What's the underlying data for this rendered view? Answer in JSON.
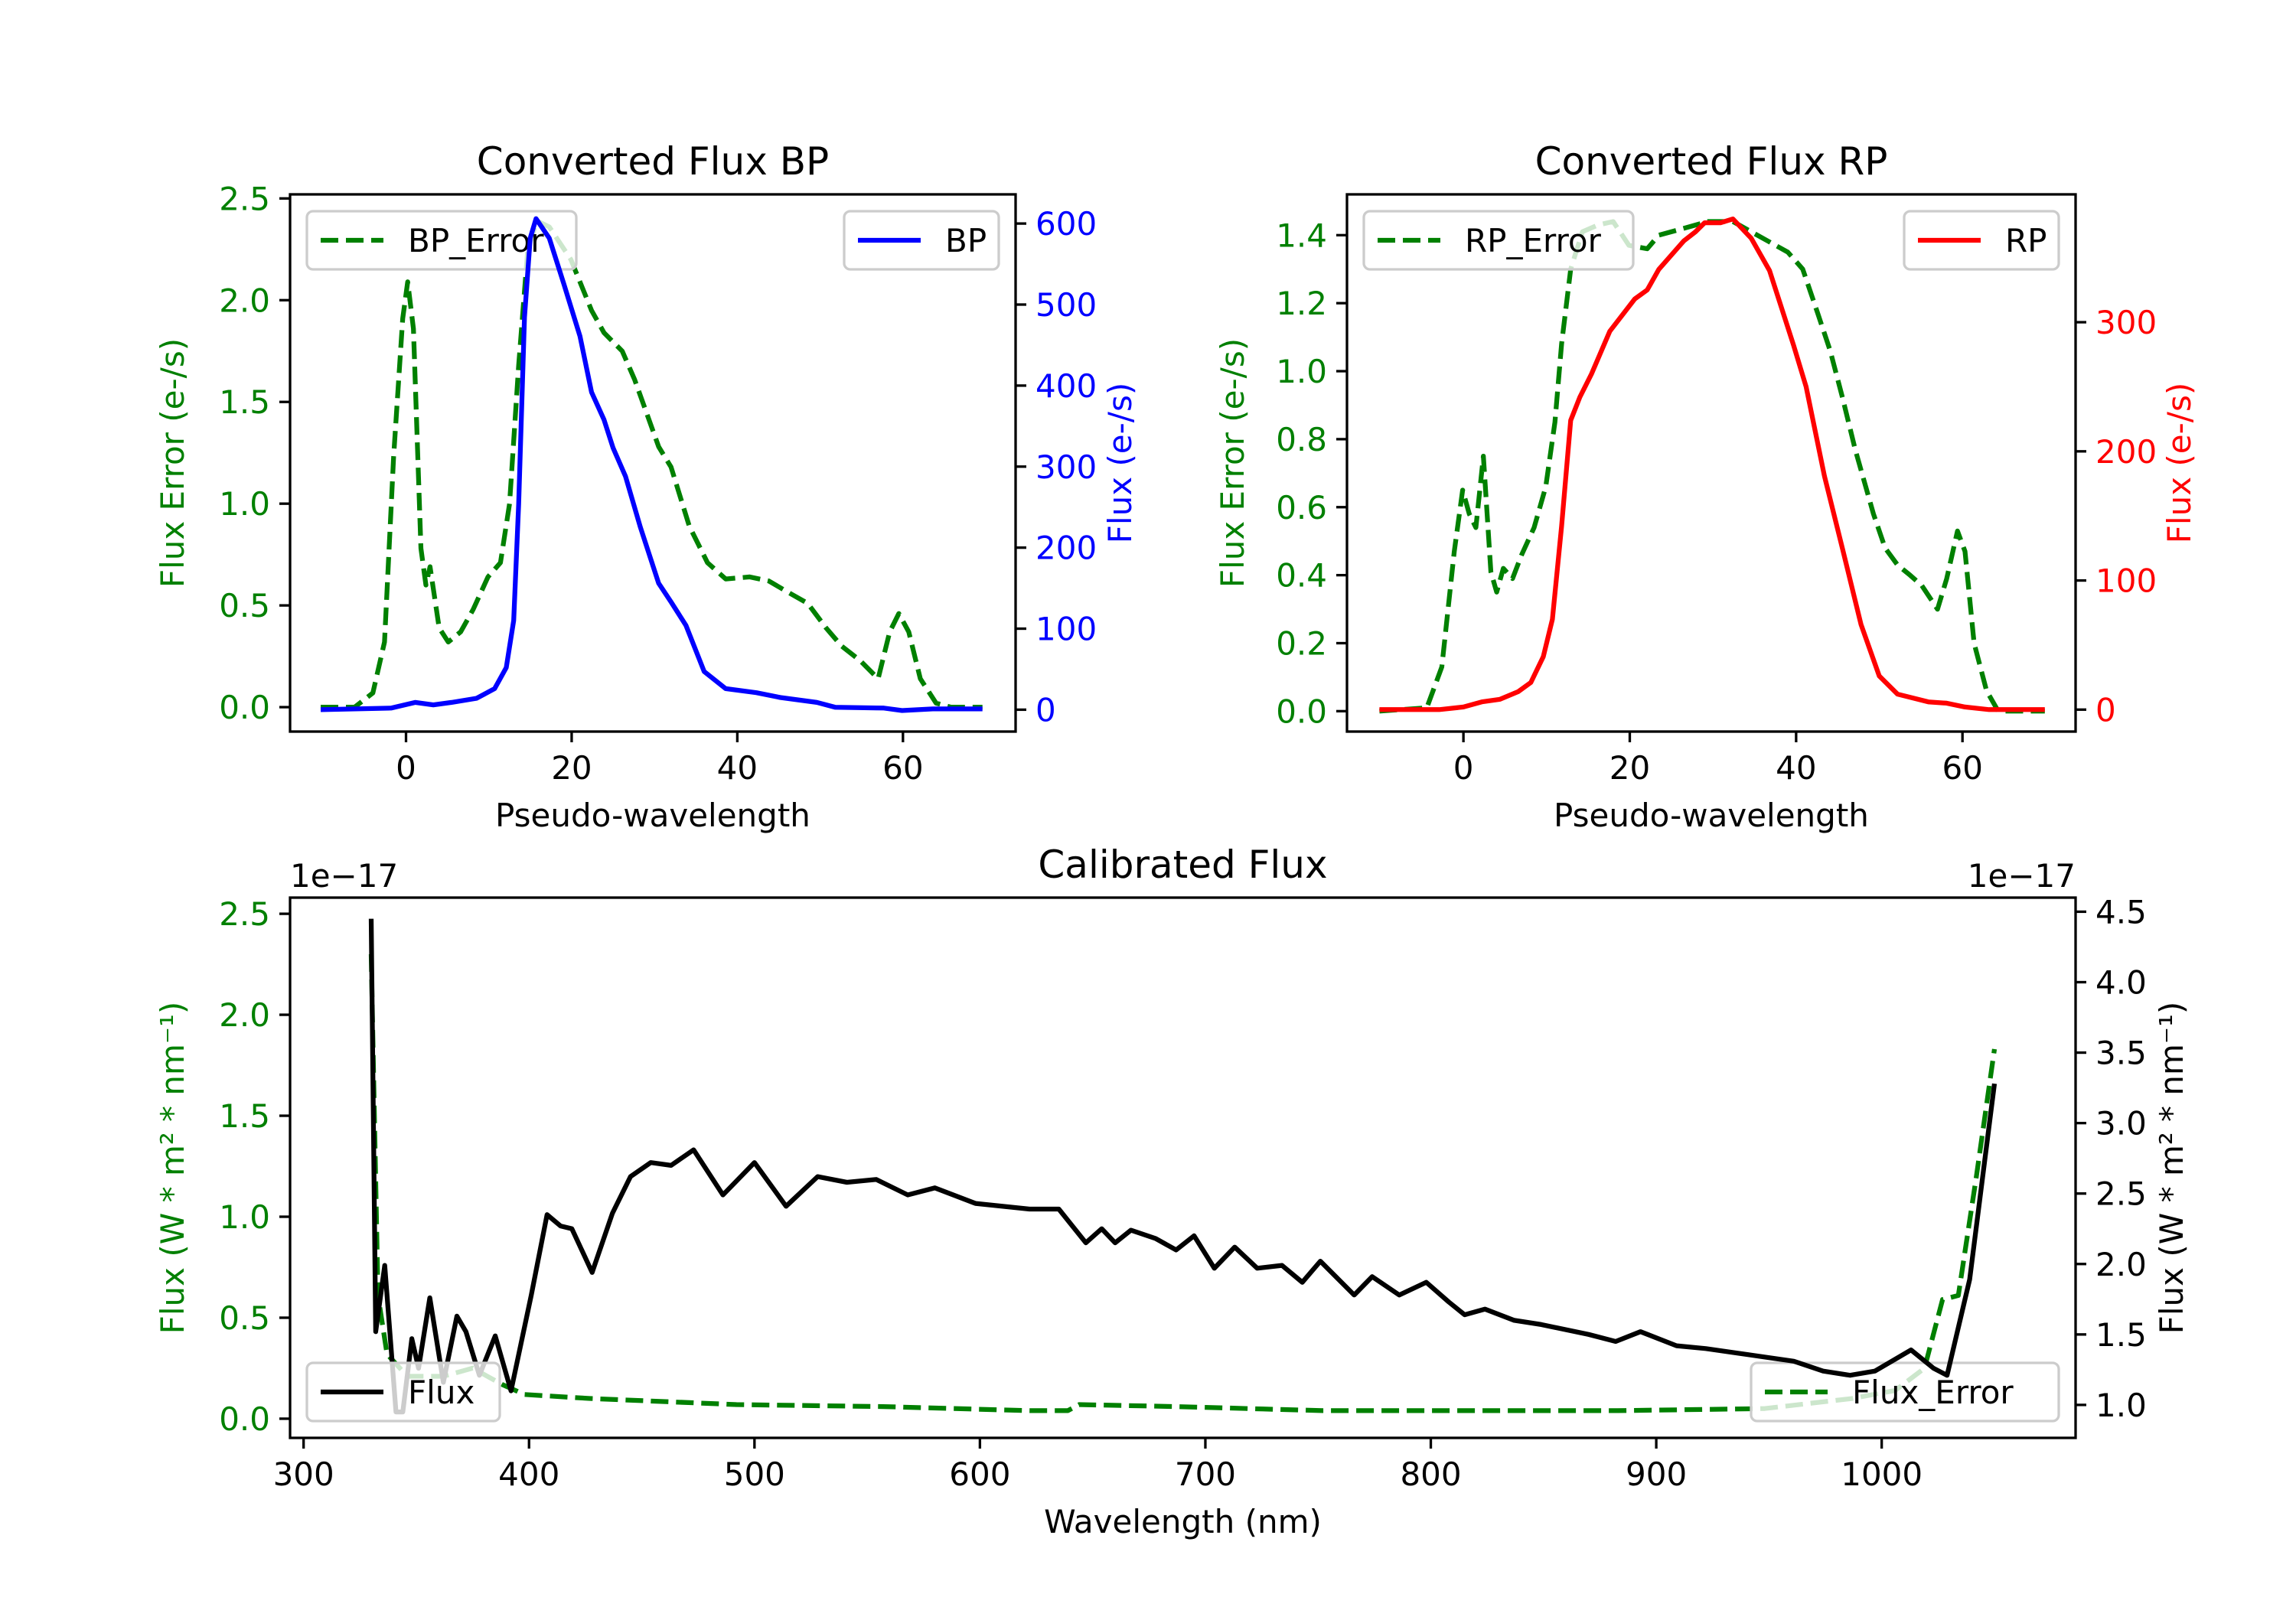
{
  "chart_data": [
    {
      "type": "line",
      "title": "Converted Flux BP",
      "xlabel": "Pseudo-wavelength",
      "ylabel_left": "Flux Error (e-/s)",
      "ylabel_right": "Flux (e-/s)",
      "color_left": "#008000",
      "color_right": "#0000ff",
      "xlim": [
        -14,
        73.6
      ],
      "ylim_left": [
        -0.12,
        2.52
      ],
      "ylim_right": [
        -27,
        636
      ],
      "xticks": [
        "0",
        "20",
        "40",
        "60"
      ],
      "yticks_left": [
        "0.0",
        "0.5",
        "1.0",
        "1.5",
        "2.0",
        "2.5"
      ],
      "yticks_right": [
        "0",
        "100",
        "200",
        "300",
        "400",
        "500",
        "600"
      ],
      "grid": false,
      "series": [
        {
          "name": "BP_Error",
          "axis": "left",
          "color": "#008000",
          "style": "dashed",
          "legend": "upper-left",
          "x": [
            -10.3,
            -6.2,
            -4,
            -2.6,
            -1.5,
            -0.4,
            0.2,
            0.9,
            1.8,
            2.4,
            2.9,
            4.0,
            5.1,
            6.6,
            8.1,
            9.9,
            11.4,
            12.5,
            13.6,
            14.7,
            15.8,
            17.3,
            19.9,
            22.4,
            23.9,
            26.1,
            27.6,
            30.5,
            32,
            34.2,
            36.4,
            38.6,
            41.5,
            43.8,
            45.9,
            48.5,
            50.7,
            52.6,
            54.8,
            57,
            58.4,
            59.5,
            60.7,
            62.1,
            64,
            65.8,
            69.6
          ],
          "y": [
            0,
            0,
            0.07,
            0.32,
            1.23,
            1.91,
            2.09,
            1.86,
            0.78,
            0.6,
            0.69,
            0.39,
            0.32,
            0.37,
            0.48,
            0.64,
            0.71,
            1.0,
            1.68,
            2.25,
            2.39,
            2.36,
            2.2,
            1.95,
            1.84,
            1.75,
            1.61,
            1.28,
            1.18,
            0.89,
            0.71,
            0.63,
            0.64,
            0.62,
            0.57,
            0.51,
            0.39,
            0.3,
            0.23,
            0.14,
            0.37,
            0.46,
            0.37,
            0.14,
            0.02,
            0,
            0
          ]
        },
        {
          "name": "BP",
          "axis": "right",
          "color": "#0000ff",
          "style": "solid",
          "legend": "upper-right",
          "x": [
            -10.3,
            -1.8,
            1.1,
            3.3,
            5.5,
            8.5,
            10.7,
            12.1,
            13,
            13.6,
            14.3,
            15,
            15.7,
            17.3,
            19.1,
            21,
            22.4,
            23.9,
            25,
            26.5,
            28.3,
            30.5,
            32,
            33.8,
            36,
            38.6,
            42.3,
            45.2,
            49.6,
            51.8,
            57.7,
            59.9,
            63.6,
            69.6
          ],
          "y": [
            0,
            2,
            9,
            6,
            9,
            14,
            26,
            52,
            110,
            254,
            484,
            582,
            606,
            582,
            524,
            461,
            392,
            358,
            323,
            288,
            225,
            156,
            133,
            104,
            47,
            26,
            21,
            15,
            9,
            3,
            2,
            -1,
            1,
            1
          ]
        }
      ]
    },
    {
      "type": "line",
      "title": "Converted Flux RP",
      "xlabel": "Pseudo-wavelength",
      "ylabel_left": "Flux Error (e-/s)",
      "ylabel_right": "Flux (e-/s)",
      "color_left": "#008000",
      "color_right": "#ff0000",
      "xlim": [
        -14,
        73.6
      ],
      "ylim_left": [
        -0.06,
        1.52
      ],
      "ylim_right": [
        -17,
        399
      ],
      "xticks": [
        "0",
        "20",
        "40",
        "60"
      ],
      "yticks_left": [
        "0.0",
        "0.2",
        "0.4",
        "0.6",
        "0.8",
        "1.0",
        "1.2",
        "1.4"
      ],
      "yticks_right": [
        "0",
        "100",
        "200",
        "300"
      ],
      "grid": false,
      "series": [
        {
          "name": "RP_Error",
          "axis": "left",
          "color": "#008000",
          "style": "dashed",
          "legend": "upper-left",
          "x": [
            -10.1,
            -4.4,
            -2.6,
            -1.1,
            -0.1,
            0.7,
            1.5,
            2.4,
            3.3,
            4.0,
            4.8,
            5.9,
            7.0,
            8.5,
            9.9,
            11,
            11.8,
            12.9,
            14.3,
            16.2,
            18,
            19.9,
            22.1,
            23.5,
            26.5,
            29.4,
            32.4,
            34.6,
            36.8,
            39,
            40.8,
            42.6,
            44.1,
            45.6,
            47.1,
            49.3,
            50.7,
            52.2,
            53.7,
            55.1,
            57,
            58.1,
            59.4,
            60.3,
            61.4,
            62.9,
            64.3,
            69.9
          ],
          "y": [
            0,
            0.01,
            0.13,
            0.47,
            0.65,
            0.58,
            0.54,
            0.75,
            0.41,
            0.35,
            0.42,
            0.39,
            0.46,
            0.54,
            0.66,
            0.85,
            1.08,
            1.3,
            1.41,
            1.43,
            1.44,
            1.37,
            1.36,
            1.4,
            1.42,
            1.44,
            1.44,
            1.41,
            1.38,
            1.35,
            1.3,
            1.17,
            1.06,
            0.92,
            0.77,
            0.58,
            0.48,
            0.43,
            0.4,
            0.37,
            0.3,
            0.39,
            0.53,
            0.47,
            0.2,
            0.06,
            0,
            0
          ]
        },
        {
          "name": "RP",
          "axis": "right",
          "color": "#ff0000",
          "style": "solid",
          "legend": "upper-right",
          "x": [
            -10.1,
            -2.9,
            0,
            2.2,
            4.4,
            6.6,
            8.1,
            9.6,
            10.7,
            11.8,
            12.9,
            14,
            15.4,
            17.6,
            20.6,
            22.1,
            23.5,
            26.5,
            27.9,
            29,
            30.9,
            32.4,
            34.6,
            36.8,
            39.7,
            41.2,
            43.4,
            45.6,
            47.8,
            50,
            52.2,
            55.9,
            58.1,
            60.3,
            63.2,
            69.9
          ],
          "y": [
            0,
            0,
            2,
            6,
            8,
            14,
            21,
            41,
            70,
            142,
            224,
            242,
            260,
            293,
            318,
            325,
            341,
            363,
            370,
            377,
            377,
            380,
            365,
            340,
            282,
            250,
            181,
            124,
            66,
            26,
            12,
            6,
            5,
            2,
            0,
            0
          ]
        }
      ]
    },
    {
      "type": "line",
      "title": "Calibrated Flux",
      "xlabel": "Wavelength (nm)",
      "ylabel_left": "Flux (W * m² * nm⁻¹)",
      "ylabel_right": "Flux (W * m² * nm⁻¹)",
      "color_left": "#008000",
      "color_right": "#000000",
      "offset_left": "1e−17",
      "offset_right": "1e−17",
      "xlim": [
        294,
        1086
      ],
      "ylim_left": [
        -0.095,
        2.58
      ],
      "ylim_right": [
        0.766,
        4.6
      ],
      "xticks": [
        "300",
        "400",
        "500",
        "600",
        "700",
        "800",
        "900",
        "1000"
      ],
      "yticks_left": [
        "0.0",
        "0.5",
        "1.0",
        "1.5",
        "2.0",
        "2.5"
      ],
      "yticks_right": [
        "1.0",
        "1.5",
        "2.0",
        "2.5",
        "3.0",
        "3.5",
        "4.0",
        "4.5"
      ],
      "grid": false,
      "series": [
        {
          "name": "Flux_Error",
          "axis": "left",
          "color": "#008000",
          "style": "dashed",
          "legend": "lower-right",
          "x": [
            330,
            333,
            337,
            346,
            362,
            375,
            388,
            398,
            427,
            492,
            557,
            622,
            639,
            644,
            687,
            752,
            818,
            883,
            948,
            987,
            1006,
            1019,
            1027,
            1034,
            1042,
            1050
          ],
          "y": [
            2.3,
            0.61,
            0.32,
            0.21,
            0.21,
            0.25,
            0.17,
            0.12,
            0.1,
            0.07,
            0.06,
            0.04,
            0.04,
            0.07,
            0.06,
            0.04,
            0.04,
            0.04,
            0.05,
            0.1,
            0.14,
            0.25,
            0.59,
            0.61,
            1.2,
            1.83
          ]
        },
        {
          "name": "Flux",
          "axis": "right",
          "color": "#000000",
          "style": "solid",
          "legend": "lower-left",
          "x": [
            330,
            332,
            336,
            341,
            344,
            348,
            351,
            356,
            362,
            368,
            372,
            378,
            385,
            392,
            401,
            408,
            414,
            419,
            428,
            437,
            445,
            454,
            463,
            473,
            486,
            500,
            514,
            528,
            541,
            554,
            568,
            580,
            598,
            622,
            635,
            647,
            654,
            660,
            667,
            678,
            687,
            695,
            704,
            713,
            723,
            734,
            743,
            751,
            766,
            774,
            786,
            798,
            808,
            815,
            824,
            837,
            849,
            870,
            882,
            893,
            909,
            922,
            935,
            948,
            961,
            974,
            986,
            997,
            1013,
            1023,
            1029,
            1039,
            1050
          ],
          "y": [
            4.45,
            1.52,
            1.99,
            0.95,
            0.95,
            1.47,
            1.26,
            1.76,
            1.16,
            1.63,
            1.52,
            1.21,
            1.49,
            1.1,
            1.78,
            2.35,
            2.27,
            2.25,
            1.94,
            2.36,
            2.62,
            2.72,
            2.7,
            2.81,
            2.49,
            2.72,
            2.41,
            2.62,
            2.58,
            2.6,
            2.49,
            2.54,
            2.43,
            2.39,
            2.39,
            2.15,
            2.25,
            2.15,
            2.24,
            2.18,
            2.1,
            2.2,
            1.97,
            2.12,
            1.97,
            1.99,
            1.87,
            2.02,
            1.78,
            1.91,
            1.78,
            1.87,
            1.73,
            1.64,
            1.68,
            1.6,
            1.57,
            1.5,
            1.45,
            1.52,
            1.42,
            1.4,
            1.37,
            1.34,
            1.31,
            1.24,
            1.21,
            1.24,
            1.39,
            1.26,
            1.21,
            1.89,
            3.28
          ]
        }
      ]
    }
  ]
}
